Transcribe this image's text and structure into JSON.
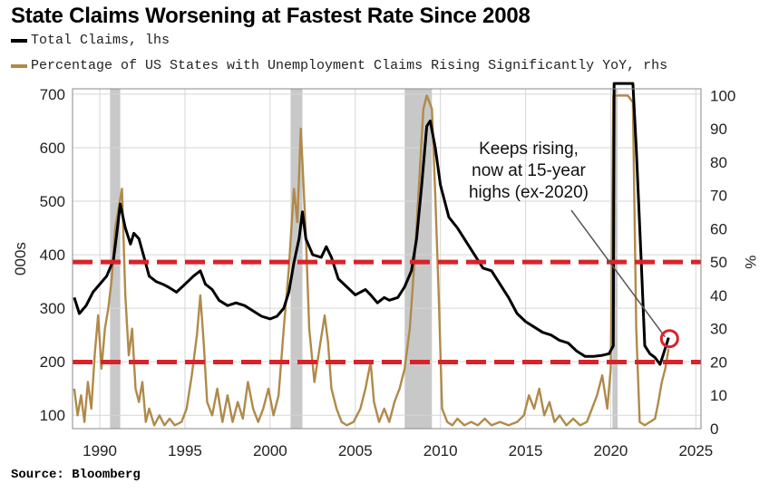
{
  "chart_data": {
    "type": "line",
    "title": "State Claims Worsening at Fastest Rate Since 2008",
    "ylabel_left": "000s",
    "ylabel_right": "%",
    "source": "Source: Bloomberg",
    "x_ticks": [
      "1990",
      "1995",
      "2000",
      "2005",
      "2010",
      "2015",
      "2020",
      "2025"
    ],
    "ylim_left": [
      75,
      710
    ],
    "yticks_left": [
      "100",
      "200",
      "300",
      "400",
      "500",
      "600",
      "700"
    ],
    "ylim_right": [
      0,
      102
    ],
    "yticks_right": [
      "0",
      "10",
      "20",
      "30",
      "40",
      "50",
      "60",
      "70",
      "80",
      "90",
      "100"
    ],
    "recessions": [
      [
        1990.6,
        1991.2
      ],
      [
        2001.2,
        2001.9
      ],
      [
        2007.9,
        2009.5
      ],
      [
        2020.1,
        2020.4
      ]
    ],
    "reference_lines_right": [
      50,
      20
    ],
    "annotation": {
      "lines": [
        "Keeps rising,",
        "now at 15-year",
        "highs (ex-2020)"
      ],
      "target_year": 2023.4,
      "target_right": 27
    },
    "colors": {
      "claims": "#000000",
      "percentage": "#b08a4a",
      "recession": "#c8c8c8",
      "ref_line": "#d8232a",
      "circle": "#d8232a"
    },
    "series": [
      {
        "name": "Total Claims, lhs",
        "axis": "left",
        "points": [
          [
            1988.5,
            320
          ],
          [
            1988.8,
            290
          ],
          [
            1989.2,
            305
          ],
          [
            1989.6,
            330
          ],
          [
            1990.0,
            345
          ],
          [
            1990.4,
            360
          ],
          [
            1990.8,
            390
          ],
          [
            1991.0,
            440
          ],
          [
            1991.2,
            495
          ],
          [
            1991.5,
            450
          ],
          [
            1991.8,
            420
          ],
          [
            1992.0,
            440
          ],
          [
            1992.3,
            430
          ],
          [
            1992.6,
            395
          ],
          [
            1992.9,
            360
          ],
          [
            1993.3,
            350
          ],
          [
            1993.7,
            345
          ],
          [
            1994.0,
            340
          ],
          [
            1994.5,
            330
          ],
          [
            1995.0,
            345
          ],
          [
            1995.5,
            360
          ],
          [
            1995.9,
            370
          ],
          [
            1996.2,
            345
          ],
          [
            1996.6,
            335
          ],
          [
            1997.0,
            315
          ],
          [
            1997.5,
            305
          ],
          [
            1998.0,
            310
          ],
          [
            1998.5,
            305
          ],
          [
            1999.0,
            295
          ],
          [
            1999.5,
            285
          ],
          [
            2000.0,
            280
          ],
          [
            2000.4,
            285
          ],
          [
            2000.8,
            300
          ],
          [
            2001.1,
            330
          ],
          [
            2001.4,
            385
          ],
          [
            2001.7,
            430
          ],
          [
            2001.9,
            480
          ],
          [
            2002.1,
            430
          ],
          [
            2002.5,
            400
          ],
          [
            2003.0,
            395
          ],
          [
            2003.3,
            415
          ],
          [
            2003.6,
            395
          ],
          [
            2004.0,
            355
          ],
          [
            2004.5,
            340
          ],
          [
            2005.0,
            325
          ],
          [
            2005.3,
            330
          ],
          [
            2005.6,
            335
          ],
          [
            2005.9,
            325
          ],
          [
            2006.3,
            310
          ],
          [
            2006.7,
            320
          ],
          [
            2007.0,
            315
          ],
          [
            2007.5,
            320
          ],
          [
            2007.9,
            340
          ],
          [
            2008.3,
            370
          ],
          [
            2008.6,
            430
          ],
          [
            2008.9,
            530
          ],
          [
            2009.2,
            640
          ],
          [
            2009.4,
            650
          ],
          [
            2009.7,
            600
          ],
          [
            2010.0,
            530
          ],
          [
            2010.5,
            470
          ],
          [
            2011.0,
            450
          ],
          [
            2011.5,
            425
          ],
          [
            2012.0,
            400
          ],
          [
            2012.5,
            375
          ],
          [
            2013.0,
            370
          ],
          [
            2013.5,
            345
          ],
          [
            2014.0,
            320
          ],
          [
            2014.5,
            290
          ],
          [
            2015.0,
            275
          ],
          [
            2015.5,
            265
          ],
          [
            2016.0,
            255
          ],
          [
            2016.5,
            250
          ],
          [
            2017.0,
            240
          ],
          [
            2017.5,
            235
          ],
          [
            2018.0,
            220
          ],
          [
            2018.5,
            210
          ],
          [
            2019.0,
            210
          ],
          [
            2019.5,
            212
          ],
          [
            2019.9,
            215
          ],
          [
            2020.15,
            230
          ],
          [
            2020.2,
            720
          ],
          [
            2021.3,
            720
          ],
          [
            2021.5,
            600
          ],
          [
            2021.8,
            380
          ],
          [
            2022.0,
            230
          ],
          [
            2022.3,
            215
          ],
          [
            2022.6,
            208
          ],
          [
            2022.9,
            195
          ],
          [
            2023.1,
            215
          ],
          [
            2023.4,
            245
          ]
        ]
      },
      {
        "name": "Percentage of US States with Unemployment Claims Rising Significantly YoY, rhs",
        "axis": "right",
        "points": [
          [
            1988.5,
            12
          ],
          [
            1988.7,
            4
          ],
          [
            1988.9,
            10
          ],
          [
            1989.1,
            2
          ],
          [
            1989.3,
            14
          ],
          [
            1989.5,
            6
          ],
          [
            1989.7,
            22
          ],
          [
            1989.9,
            34
          ],
          [
            1990.1,
            18
          ],
          [
            1990.3,
            30
          ],
          [
            1990.5,
            36
          ],
          [
            1990.7,
            45
          ],
          [
            1990.9,
            60
          ],
          [
            1991.1,
            66
          ],
          [
            1991.3,
            72
          ],
          [
            1991.5,
            40
          ],
          [
            1991.7,
            22
          ],
          [
            1991.9,
            30
          ],
          [
            1992.1,
            12
          ],
          [
            1992.3,
            8
          ],
          [
            1992.5,
            14
          ],
          [
            1992.7,
            2
          ],
          [
            1992.9,
            6
          ],
          [
            1993.2,
            1
          ],
          [
            1993.5,
            4
          ],
          [
            1993.8,
            1
          ],
          [
            1994.1,
            3
          ],
          [
            1994.4,
            1
          ],
          [
            1994.8,
            2
          ],
          [
            1995.1,
            6
          ],
          [
            1995.4,
            16
          ],
          [
            1995.7,
            28
          ],
          [
            1995.9,
            40
          ],
          [
            1996.1,
            26
          ],
          [
            1996.3,
            8
          ],
          [
            1996.6,
            4
          ],
          [
            1996.9,
            12
          ],
          [
            1997.2,
            2
          ],
          [
            1997.5,
            10
          ],
          [
            1997.8,
            2
          ],
          [
            1998.1,
            8
          ],
          [
            1998.4,
            3
          ],
          [
            1998.7,
            14
          ],
          [
            1999.0,
            6
          ],
          [
            1999.3,
            2
          ],
          [
            1999.6,
            6
          ],
          [
            1999.9,
            12
          ],
          [
            2000.2,
            4
          ],
          [
            2000.5,
            10
          ],
          [
            2000.8,
            30
          ],
          [
            2001.1,
            48
          ],
          [
            2001.4,
            72
          ],
          [
            2001.6,
            62
          ],
          [
            2001.8,
            90
          ],
          [
            2001.9,
            80
          ],
          [
            2002.1,
            58
          ],
          [
            2002.3,
            30
          ],
          [
            2002.6,
            14
          ],
          [
            2002.9,
            24
          ],
          [
            2003.2,
            34
          ],
          [
            2003.4,
            26
          ],
          [
            2003.6,
            12
          ],
          [
            2003.9,
            6
          ],
          [
            2004.2,
            2
          ],
          [
            2004.5,
            1
          ],
          [
            2004.9,
            2
          ],
          [
            2005.3,
            6
          ],
          [
            2005.6,
            12
          ],
          [
            2005.9,
            20
          ],
          [
            2006.1,
            8
          ],
          [
            2006.4,
            2
          ],
          [
            2006.7,
            6
          ],
          [
            2007.0,
            2
          ],
          [
            2007.3,
            8
          ],
          [
            2007.6,
            12
          ],
          [
            2007.9,
            18
          ],
          [
            2008.2,
            30
          ],
          [
            2008.5,
            52
          ],
          [
            2008.8,
            78
          ],
          [
            2009.0,
            96
          ],
          [
            2009.2,
            100
          ],
          [
            2009.5,
            96
          ],
          [
            2009.7,
            70
          ],
          [
            2009.9,
            40
          ],
          [
            2010.1,
            6
          ],
          [
            2010.4,
            2
          ],
          [
            2010.7,
            1
          ],
          [
            2011.0,
            3
          ],
          [
            2011.4,
            1
          ],
          [
            2011.8,
            2
          ],
          [
            2012.2,
            1
          ],
          [
            2012.6,
            3
          ],
          [
            2013.0,
            1
          ],
          [
            2013.5,
            2
          ],
          [
            2014.0,
            1
          ],
          [
            2014.5,
            2
          ],
          [
            2014.9,
            4
          ],
          [
            2015.2,
            10
          ],
          [
            2015.5,
            6
          ],
          [
            2015.8,
            12
          ],
          [
            2016.1,
            4
          ],
          [
            2016.4,
            8
          ],
          [
            2016.7,
            2
          ],
          [
            2017.0,
            4
          ],
          [
            2017.4,
            1
          ],
          [
            2017.8,
            3
          ],
          [
            2018.2,
            1
          ],
          [
            2018.6,
            2
          ],
          [
            2018.9,
            6
          ],
          [
            2019.2,
            10
          ],
          [
            2019.5,
            16
          ],
          [
            2019.8,
            6
          ],
          [
            2020.0,
            18
          ],
          [
            2020.15,
            100
          ],
          [
            2021.0,
            100
          ],
          [
            2021.3,
            98
          ],
          [
            2021.5,
            30
          ],
          [
            2021.7,
            2
          ],
          [
            2022.0,
            1
          ],
          [
            2022.3,
            2
          ],
          [
            2022.6,
            3
          ],
          [
            2022.8,
            8
          ],
          [
            2023.0,
            14
          ],
          [
            2023.2,
            18
          ],
          [
            2023.4,
            24
          ]
        ]
      }
    ]
  }
}
